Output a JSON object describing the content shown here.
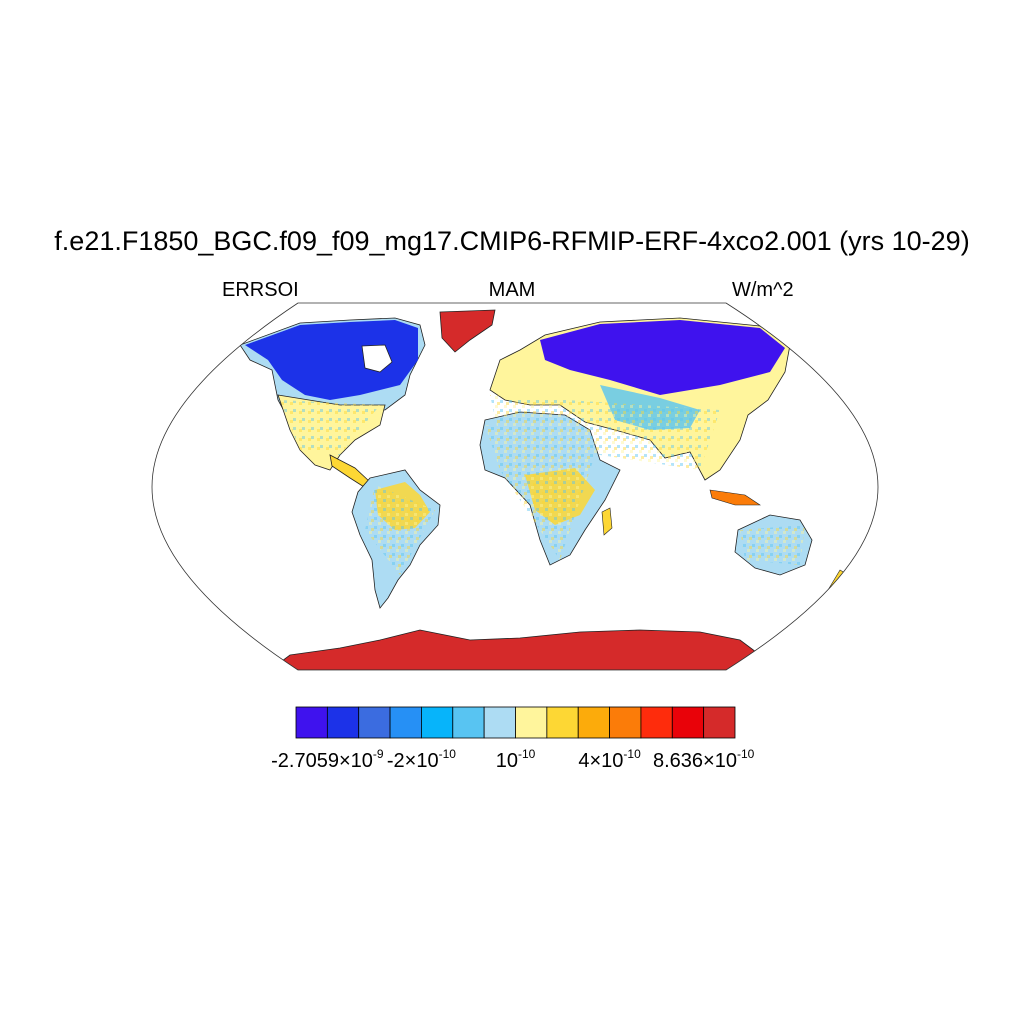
{
  "title": "f.e21.F1850_BGC.f09_f09_mg17.CMIP6-RFMIP-ERF-4xco2.001 (yrs 10-29)",
  "left_string": "ERRSOI",
  "center_string": "MAM",
  "right_string": "W/m^2",
  "colorbar": {
    "colors": [
      "#3f12ee",
      "#1c32e8",
      "#3b6ce0",
      "#2690f5",
      "#07b4fa",
      "#58c4f2",
      "#addcf3",
      "#fff59c",
      "#fdd734",
      "#fcab0b",
      "#fb7c09",
      "#fe2c0c",
      "#e90209",
      "#d52a2a"
    ],
    "labels": [
      {
        "mant": "-2.7059×10",
        "exp": "-9"
      },
      {
        "mant": "-2×10",
        "exp": "-10"
      },
      {
        "mant": "10",
        "exp": "-10"
      },
      {
        "mant": "4×10",
        "exp": "-10"
      },
      {
        "mant": "8.636×10",
        "exp": "-10"
      }
    ]
  }
}
